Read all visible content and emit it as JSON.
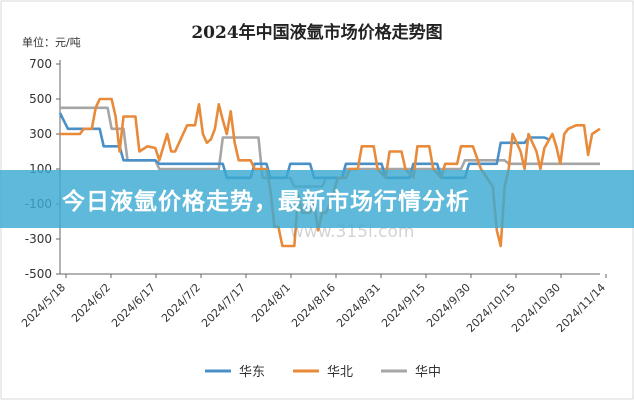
{
  "banner": {
    "text": "今日液氩价格走势，最新市场行情分析"
  },
  "watermark": {
    "text": "www.315i.com"
  },
  "colors": {
    "east": "#4a90c8",
    "north": "#e88a3a",
    "central": "#a6a6a6",
    "banner": "#3caad2",
    "axis": "#666666"
  },
  "chart_data": {
    "type": "line",
    "title": "2024年中国液氩市场价格走势图",
    "unit_label": "单位：元/吨",
    "xlabel": "",
    "ylabel": "",
    "ylim": [
      -500,
      700
    ],
    "yticks": [
      700,
      500,
      300,
      100,
      -100,
      -300,
      -500
    ],
    "grid": false,
    "legend_position": "bottom",
    "x": [
      "2024/5/18",
      "2024/6/2",
      "2024/6/17",
      "2024/7/2",
      "2024/7/17",
      "2024/8/1",
      "2024/8/16",
      "2024/8/31",
      "2024/9/15",
      "2024/9/30",
      "2024/10/15",
      "2024/10/30",
      "2024/11/14"
    ],
    "series": [
      {
        "name": "华东",
        "color": "#4a90c8",
        "values": [
          [
            0,
            420
          ],
          [
            2,
            330
          ],
          [
            10,
            330
          ],
          [
            11,
            230
          ],
          [
            15,
            230
          ],
          [
            16,
            150
          ],
          [
            24,
            150
          ],
          [
            25,
            130
          ],
          [
            41,
            130
          ],
          [
            42,
            50
          ],
          [
            48,
            50
          ],
          [
            49,
            130
          ],
          [
            52,
            130
          ],
          [
            53,
            50
          ],
          [
            57,
            50
          ],
          [
            58,
            130
          ],
          [
            63,
            130
          ],
          [
            64,
            50
          ],
          [
            71,
            50
          ],
          [
            72,
            130
          ],
          [
            81,
            130
          ],
          [
            82,
            50
          ],
          [
            88,
            50
          ],
          [
            89,
            130
          ],
          [
            95,
            130
          ],
          [
            96,
            50
          ],
          [
            102,
            50
          ],
          [
            103,
            130
          ],
          [
            110,
            130
          ],
          [
            111,
            250
          ],
          [
            117,
            250
          ],
          [
            118,
            280
          ],
          [
            122,
            280
          ],
          [
            123,
            270
          ]
        ]
      },
      {
        "name": "华北",
        "color": "#e88a3a",
        "values": [
          [
            0,
            300
          ],
          [
            5,
            300
          ],
          [
            6,
            330
          ],
          [
            8,
            330
          ],
          [
            9,
            450
          ],
          [
            10,
            500
          ],
          [
            13,
            500
          ],
          [
            14,
            400
          ],
          [
            15,
            200
          ],
          [
            16,
            400
          ],
          [
            19,
            400
          ],
          [
            20,
            200
          ],
          [
            22,
            230
          ],
          [
            24,
            220
          ],
          [
            25,
            150
          ],
          [
            27,
            300
          ],
          [
            28,
            200
          ],
          [
            29,
            200
          ],
          [
            31,
            300
          ],
          [
            32,
            350
          ],
          [
            34,
            350
          ],
          [
            35,
            470
          ],
          [
            36,
            300
          ],
          [
            37,
            250
          ],
          [
            38,
            270
          ],
          [
            39,
            330
          ],
          [
            40,
            470
          ],
          [
            41,
            380
          ],
          [
            42,
            300
          ],
          [
            43,
            430
          ],
          [
            44,
            250
          ],
          [
            45,
            150
          ],
          [
            48,
            150
          ],
          [
            49,
            100
          ],
          [
            52,
            100
          ],
          [
            53,
            -20
          ],
          [
            54,
            -230
          ],
          [
            55,
            -230
          ],
          [
            56,
            -340
          ],
          [
            59,
            -340
          ],
          [
            60,
            -50
          ],
          [
            61,
            -150
          ],
          [
            63,
            -150
          ],
          [
            64,
            -100
          ],
          [
            65,
            -250
          ],
          [
            66,
            -150
          ],
          [
            67,
            -150
          ],
          [
            68,
            -100
          ],
          [
            70,
            50
          ],
          [
            72,
            50
          ],
          [
            73,
            100
          ],
          [
            75,
            100
          ],
          [
            76,
            230
          ],
          [
            79,
            230
          ],
          [
            80,
            100
          ],
          [
            82,
            50
          ],
          [
            83,
            200
          ],
          [
            86,
            200
          ],
          [
            87,
            100
          ],
          [
            89,
            50
          ],
          [
            90,
            230
          ],
          [
            93,
            230
          ],
          [
            94,
            100
          ],
          [
            96,
            50
          ],
          [
            97,
            130
          ],
          [
            100,
            130
          ],
          [
            101,
            230
          ],
          [
            104,
            230
          ],
          [
            106,
            100
          ],
          [
            109,
            0
          ],
          [
            110,
            -250
          ],
          [
            111,
            -340
          ],
          [
            112,
            0
          ],
          [
            113,
            100
          ],
          [
            114,
            300
          ],
          [
            116,
            200
          ],
          [
            117,
            100
          ],
          [
            118,
            300
          ],
          [
            120,
            200
          ],
          [
            121,
            100
          ],
          [
            122,
            220
          ],
          [
            124,
            300
          ],
          [
            125,
            230
          ],
          [
            126,
            130
          ],
          [
            127,
            300
          ],
          [
            128,
            330
          ],
          [
            130,
            350
          ],
          [
            132,
            350
          ],
          [
            133,
            180
          ],
          [
            134,
            300
          ],
          [
            136,
            330
          ]
        ]
      },
      {
        "name": "华中",
        "color": "#a6a6a6",
        "values": [
          [
            0,
            450
          ],
          [
            12,
            450
          ],
          [
            13,
            330
          ],
          [
            16,
            330
          ],
          [
            17,
            150
          ],
          [
            24,
            150
          ],
          [
            25,
            100
          ],
          [
            40,
            100
          ],
          [
            41,
            280
          ],
          [
            50,
            280
          ],
          [
            51,
            50
          ],
          [
            58,
            50
          ],
          [
            59,
            0
          ],
          [
            66,
            0
          ],
          [
            67,
            50
          ],
          [
            71,
            50
          ],
          [
            72,
            100
          ],
          [
            101,
            100
          ],
          [
            102,
            150
          ],
          [
            112,
            150
          ],
          [
            113,
            130
          ],
          [
            136,
            130
          ]
        ]
      }
    ],
    "x_index_range": [
      0,
      136
    ]
  }
}
